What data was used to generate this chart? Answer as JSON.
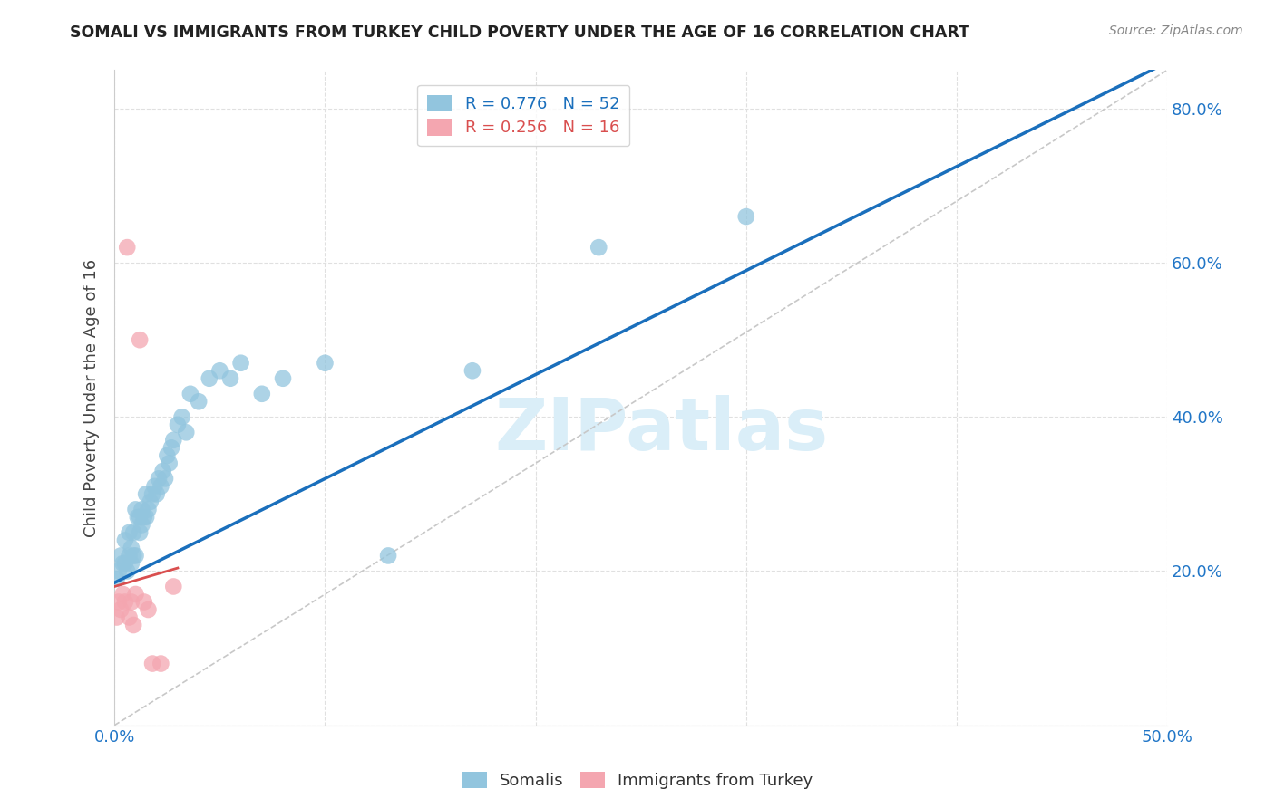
{
  "title": "SOMALI VS IMMIGRANTS FROM TURKEY CHILD POVERTY UNDER THE AGE OF 16 CORRELATION CHART",
  "source": "Source: ZipAtlas.com",
  "ylabel": "Child Poverty Under the Age of 16",
  "xlim": [
    0.0,
    0.5
  ],
  "ylim": [
    0.0,
    0.85
  ],
  "somali_color": "#92c5de",
  "turkey_color": "#f4a6b0",
  "trend_somali_color": "#1a6fbc",
  "trend_turkey_color": "#d94f4f",
  "diagonal_color": "#c8c8c8",
  "R_somali": 0.776,
  "N_somali": 52,
  "R_turkey": 0.256,
  "N_turkey": 16,
  "somali_x": [
    0.001,
    0.002,
    0.003,
    0.004,
    0.005,
    0.005,
    0.006,
    0.007,
    0.007,
    0.008,
    0.008,
    0.009,
    0.009,
    0.01,
    0.01,
    0.011,
    0.012,
    0.012,
    0.013,
    0.013,
    0.014,
    0.015,
    0.015,
    0.016,
    0.017,
    0.018,
    0.019,
    0.02,
    0.021,
    0.022,
    0.023,
    0.024,
    0.025,
    0.026,
    0.027,
    0.028,
    0.03,
    0.032,
    0.034,
    0.036,
    0.04,
    0.045,
    0.05,
    0.055,
    0.06,
    0.07,
    0.08,
    0.1,
    0.13,
    0.17,
    0.23,
    0.3
  ],
  "somali_y": [
    0.19,
    0.2,
    0.22,
    0.21,
    0.21,
    0.24,
    0.2,
    0.22,
    0.25,
    0.21,
    0.23,
    0.22,
    0.25,
    0.22,
    0.28,
    0.27,
    0.25,
    0.27,
    0.26,
    0.28,
    0.27,
    0.27,
    0.3,
    0.28,
    0.29,
    0.3,
    0.31,
    0.3,
    0.32,
    0.31,
    0.33,
    0.32,
    0.35,
    0.34,
    0.36,
    0.37,
    0.39,
    0.4,
    0.38,
    0.43,
    0.42,
    0.45,
    0.46,
    0.45,
    0.47,
    0.43,
    0.45,
    0.47,
    0.22,
    0.46,
    0.62,
    0.66
  ],
  "turkey_x": [
    0.001,
    0.002,
    0.003,
    0.004,
    0.005,
    0.006,
    0.007,
    0.008,
    0.009,
    0.01,
    0.012,
    0.014,
    0.016,
    0.018,
    0.022,
    0.028
  ],
  "turkey_y": [
    0.14,
    0.16,
    0.15,
    0.17,
    0.16,
    0.62,
    0.14,
    0.16,
    0.13,
    0.17,
    0.5,
    0.16,
    0.15,
    0.08,
    0.08,
    0.18
  ],
  "watermark_text": "ZIPatlas",
  "watermark_color": "#daeef8",
  "background_color": "#ffffff",
  "grid_color": "#e0e0e0",
  "legend_somali_label": "R = 0.776   N = 52",
  "legend_turkey_label": "R = 0.256   N = 16",
  "bottom_legend_somali": "Somalis",
  "bottom_legend_turkey": "Immigrants from Turkey",
  "x_tick_labels": [
    "0.0%",
    "",
    "",
    "",
    "",
    "50.0%"
  ],
  "x_tick_positions": [
    0.0,
    0.1,
    0.2,
    0.3,
    0.4,
    0.5
  ],
  "y_tick_labels": [
    "",
    "20.0%",
    "40.0%",
    "60.0%",
    "80.0%"
  ],
  "y_tick_positions": [
    0.0,
    0.2,
    0.4,
    0.6,
    0.8
  ],
  "trend_somali_intercept": 0.185,
  "trend_somali_slope": 1.35,
  "trend_turkey_intercept": 0.18,
  "trend_turkey_slope": 0.8
}
